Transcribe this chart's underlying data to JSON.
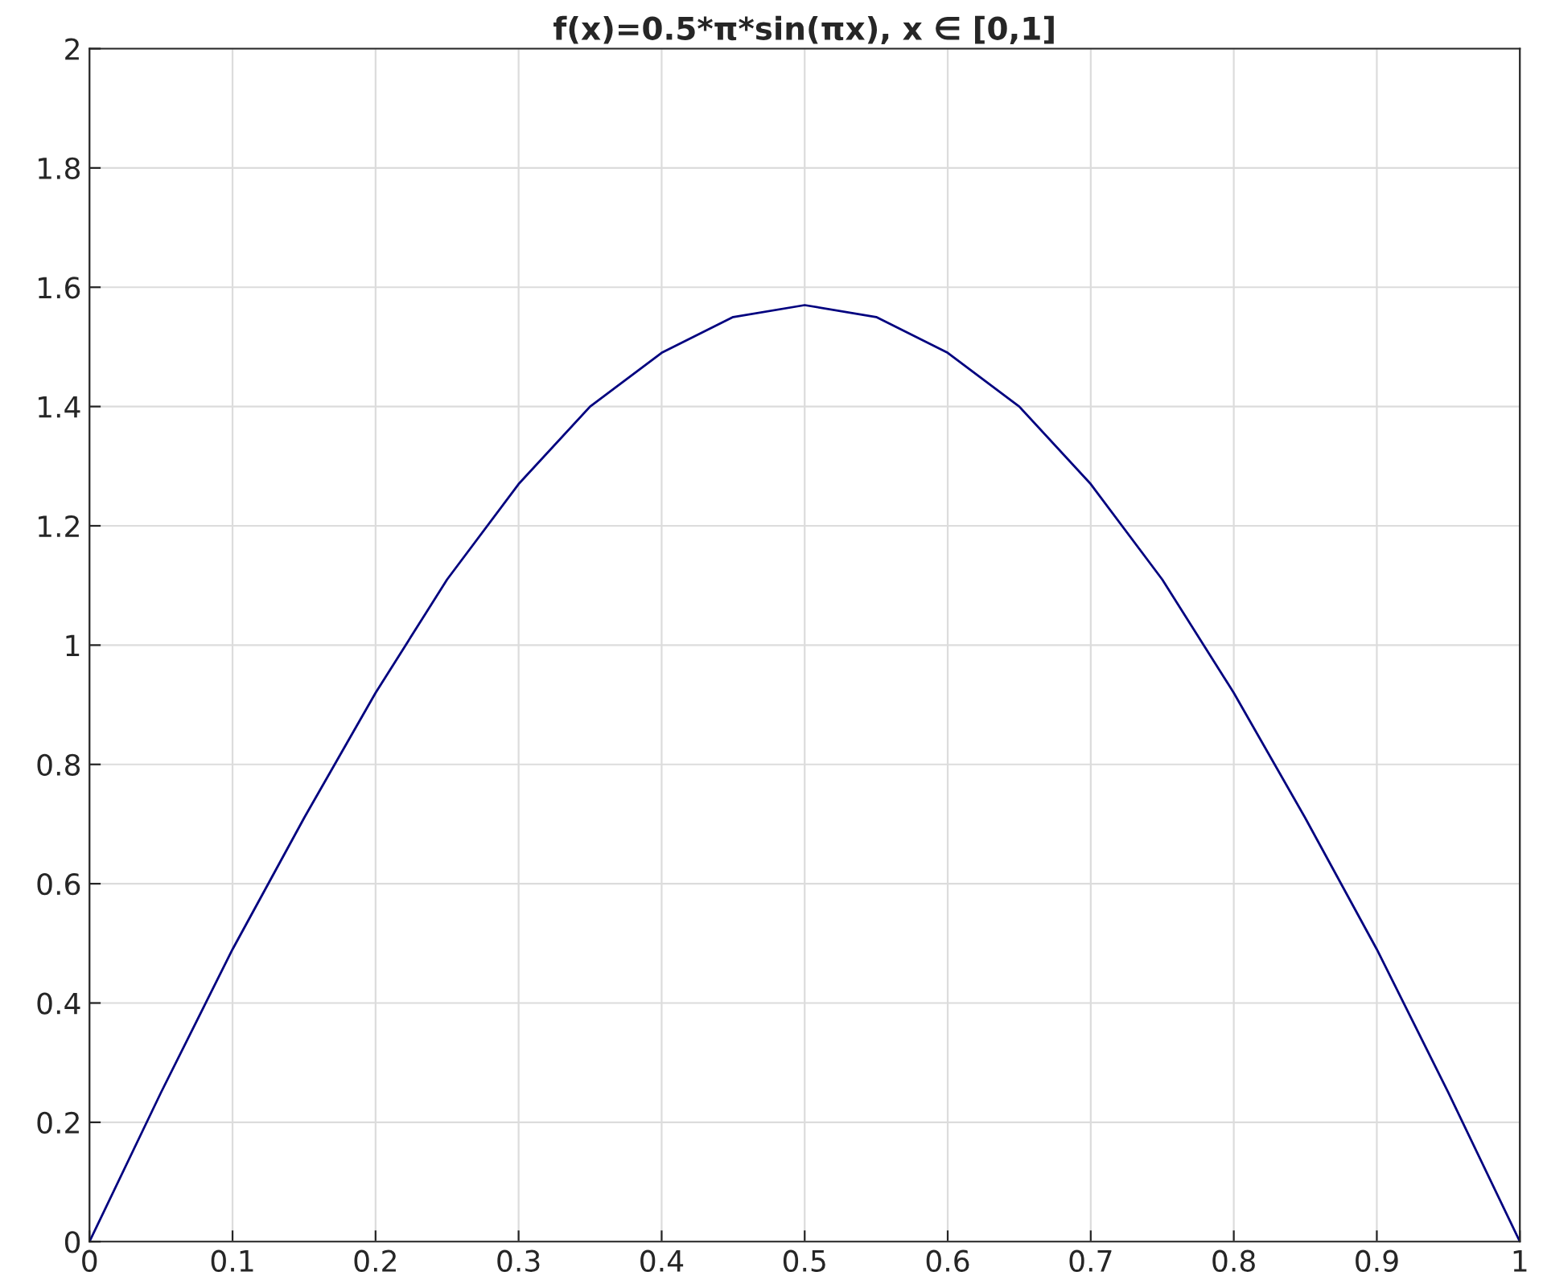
{
  "chart_data": {
    "type": "line",
    "title": "f(x)=0.5*π*sin(πx), x ∈ [0,1]",
    "series": [
      {
        "color": "#00007f",
        "x": [
          0,
          0.05,
          0.1,
          0.15,
          0.2,
          0.25,
          0.3,
          0.35,
          0.4,
          0.45,
          0.5,
          0.55,
          0.6,
          0.65,
          0.7,
          0.75,
          0.8,
          0.85,
          0.9,
          0.95,
          1
        ],
        "values": [
          0,
          0.25,
          0.49,
          0.71,
          0.92,
          1.11,
          1.27,
          1.4,
          1.49,
          1.55,
          1.57,
          1.55,
          1.49,
          1.4,
          1.27,
          1.11,
          0.92,
          0.71,
          0.49,
          0.25,
          0
        ]
      }
    ],
    "xlim": [
      0,
      1
    ],
    "xticks": [
      0,
      0.1,
      0.2,
      0.3,
      0.4,
      0.5,
      0.6,
      0.7,
      0.8,
      0.9,
      1
    ],
    "ylim": [
      0,
      2
    ],
    "yticks": [
      0,
      0.2,
      0.4,
      0.6,
      0.8,
      1,
      1.2,
      1.4,
      1.6,
      1.8,
      2
    ],
    "grid": true,
    "line_style": "solid"
  }
}
